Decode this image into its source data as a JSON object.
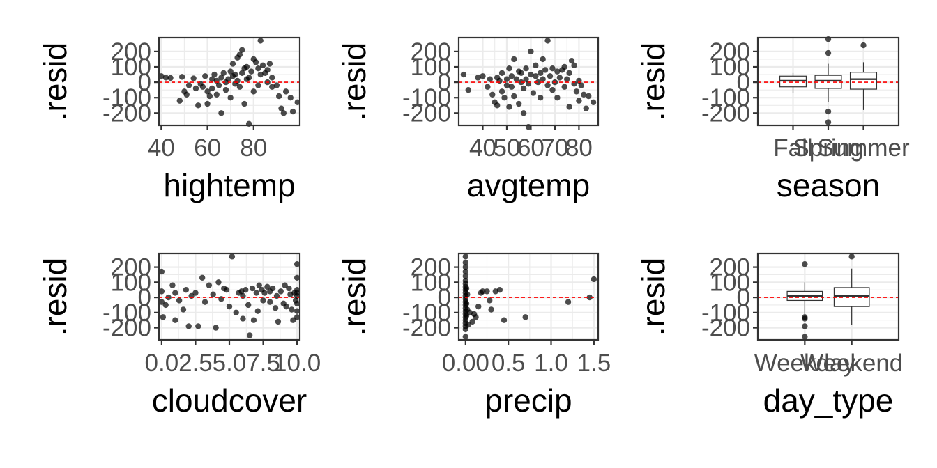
{
  "chart_data": [
    {
      "type": "scatter",
      "panel": "hightemp",
      "xlabel": "hightemp",
      "ylabel": ".resid",
      "xlim": [
        39,
        100
      ],
      "ylim": [
        -280,
        290
      ],
      "xticks": [
        40,
        60,
        80
      ],
      "xtick_labels": [
        "40",
        "60",
        "80"
      ],
      "yticks": [
        200,
        100,
        0,
        -100,
        -200
      ],
      "ytick_labels": [
        "200",
        "100",
        "0",
        "-100",
        "-200"
      ],
      "reference_line_y": 0,
      "points": [
        [
          40,
          40
        ],
        [
          42,
          30
        ],
        [
          44,
          28
        ],
        [
          48,
          -120
        ],
        [
          49,
          35
        ],
        [
          50,
          -60
        ],
        [
          51,
          -80
        ],
        [
          52,
          -20
        ],
        [
          54,
          25
        ],
        [
          55,
          -40
        ],
        [
          56,
          -150
        ],
        [
          57,
          -10
        ],
        [
          58,
          -30
        ],
        [
          59,
          40
        ],
        [
          60,
          -60
        ],
        [
          60,
          -140
        ],
        [
          61,
          -90
        ],
        [
          62,
          20
        ],
        [
          62,
          -40
        ],
        [
          63,
          50
        ],
        [
          64,
          10
        ],
        [
          64,
          -80
        ],
        [
          65,
          -20
        ],
        [
          66,
          30
        ],
        [
          66,
          -200
        ],
        [
          67,
          60
        ],
        [
          68,
          0
        ],
        [
          68,
          -50
        ],
        [
          69,
          20
        ],
        [
          70,
          70
        ],
        [
          70,
          -100
        ],
        [
          71,
          40
        ],
        [
          72,
          50
        ],
        [
          72,
          -10
        ],
        [
          73,
          10
        ],
        [
          73,
          160
        ],
        [
          74,
          -30
        ],
        [
          75,
          60
        ],
        [
          75,
          210
        ],
        [
          76,
          90
        ],
        [
          76,
          -140
        ],
        [
          77,
          100
        ],
        [
          77,
          20
        ],
        [
          78,
          30
        ],
        [
          78,
          -270
        ],
        [
          79,
          70
        ],
        [
          80,
          -60
        ],
        [
          80,
          150
        ],
        [
          81,
          130
        ],
        [
          82,
          90
        ],
        [
          82,
          -20
        ],
        [
          83,
          50
        ],
        [
          83,
          270
        ],
        [
          84,
          110
        ],
        [
          85,
          60
        ],
        [
          86,
          0
        ],
        [
          86,
          80
        ],
        [
          87,
          120
        ],
        [
          88,
          -30
        ],
        [
          88,
          30
        ],
        [
          90,
          -20
        ],
        [
          91,
          -90
        ],
        [
          92,
          -170
        ],
        [
          93,
          -200
        ],
        [
          94,
          -60
        ],
        [
          96,
          -100
        ],
        [
          97,
          -190
        ],
        [
          99,
          -130
        ],
        [
          71,
          120
        ],
        [
          74,
          180
        ]
      ]
    },
    {
      "type": "scatter",
      "panel": "avgtemp",
      "xlabel": "avgtemp",
      "ylabel": ".resid",
      "xlim": [
        30,
        88
      ],
      "ylim": [
        -280,
        290
      ],
      "xticks": [
        40,
        50,
        60,
        70,
        80
      ],
      "xtick_labels": [
        "40",
        "50",
        "60",
        "70",
        "80"
      ],
      "yticks": [
        200,
        100,
        0,
        -100,
        -200
      ],
      "ytick_labels": [
        "200",
        "100",
        "0",
        "-100",
        "-200"
      ],
      "reference_line_y": 0,
      "points": [
        [
          32,
          50
        ],
        [
          34,
          -50
        ],
        [
          38,
          30
        ],
        [
          40,
          40
        ],
        [
          42,
          -30
        ],
        [
          43,
          20
        ],
        [
          44,
          -80
        ],
        [
          45,
          -130
        ],
        [
          46,
          30
        ],
        [
          46,
          -150
        ],
        [
          47,
          10
        ],
        [
          48,
          -60
        ],
        [
          48,
          60
        ],
        [
          49,
          -100
        ],
        [
          50,
          -20
        ],
        [
          50,
          20
        ],
        [
          51,
          -160
        ],
        [
          51,
          90
        ],
        [
          52,
          40
        ],
        [
          52,
          -30
        ],
        [
          53,
          150
        ],
        [
          53,
          -90
        ],
        [
          54,
          20
        ],
        [
          55,
          70
        ],
        [
          55,
          -140
        ],
        [
          56,
          0
        ],
        [
          56,
          60
        ],
        [
          57,
          -40
        ],
        [
          57,
          -200
        ],
        [
          58,
          20
        ],
        [
          58,
          90
        ],
        [
          59,
          -10
        ],
        [
          59,
          -290
        ],
        [
          60,
          50
        ],
        [
          60,
          200
        ],
        [
          61,
          -70
        ],
        [
          62,
          40
        ],
        [
          62,
          110
        ],
        [
          63,
          0
        ],
        [
          64,
          60
        ],
        [
          64,
          -100
        ],
        [
          65,
          20
        ],
        [
          65,
          150
        ],
        [
          66,
          80
        ],
        [
          67,
          -20
        ],
        [
          67,
          270
        ],
        [
          68,
          40
        ],
        [
          69,
          90
        ],
        [
          69,
          -50
        ],
        [
          70,
          0
        ],
        [
          71,
          70
        ],
        [
          71,
          -100
        ],
        [
          72,
          30
        ],
        [
          73,
          80
        ],
        [
          74,
          -30
        ],
        [
          75,
          20
        ],
        [
          76,
          60
        ],
        [
          76,
          -160
        ],
        [
          77,
          140
        ],
        [
          78,
          110
        ],
        [
          78,
          -10
        ],
        [
          79,
          -60
        ],
        [
          80,
          -120
        ],
        [
          81,
          -20
        ],
        [
          82,
          -80
        ],
        [
          83,
          -170
        ],
        [
          84,
          -90
        ],
        [
          86,
          -130
        ],
        [
          80,
          10
        ],
        [
          74,
          100
        ]
      ]
    },
    {
      "type": "box",
      "panel": "season",
      "xlabel": "season",
      "ylabel": ".resid",
      "categories": [
        "Fall",
        "Spring",
        "Summer"
      ],
      "ylim": [
        -280,
        290
      ],
      "yticks": [
        200,
        100,
        0,
        -100,
        -200
      ],
      "ytick_labels": [
        "200",
        "100",
        "0",
        "-100",
        "-200"
      ],
      "reference_line_y": 0,
      "boxes": [
        {
          "q1": -30,
          "median": 10,
          "q3": 40,
          "lower": -70,
          "upper": 60,
          "outliers": []
        },
        {
          "q1": -40,
          "median": 10,
          "q3": 45,
          "lower": -130,
          "upper": 120,
          "outliers": [
            -190,
            -260,
            190,
            280
          ]
        },
        {
          "q1": -45,
          "median": 20,
          "q3": 65,
          "lower": -180,
          "upper": 130,
          "outliers": [
            240
          ]
        }
      ]
    },
    {
      "type": "scatter",
      "panel": "cloudcover",
      "xlabel": "cloudcover",
      "ylabel": ".resid",
      "xlim": [
        -0.2,
        10.2
      ],
      "ylim": [
        -280,
        290
      ],
      "xticks": [
        0,
        2.5,
        5,
        7.5,
        10
      ],
      "xtick_labels": [
        "0.0",
        "2.5",
        "5.0",
        "7.5",
        "10.0"
      ],
      "reference_line_y": 0,
      "yticks": [
        200,
        100,
        0,
        -100,
        -200
      ],
      "ytick_labels": [
        "200",
        "100",
        "0",
        "-100",
        "-200"
      ],
      "points": [
        [
          0,
          170
        ],
        [
          0,
          40
        ],
        [
          0,
          -30
        ],
        [
          0.1,
          -130
        ],
        [
          0.3,
          -50
        ],
        [
          0.5,
          0
        ],
        [
          0.8,
          80
        ],
        [
          1,
          30
        ],
        [
          1,
          -150
        ],
        [
          1.3,
          -20
        ],
        [
          1.6,
          -80
        ],
        [
          1.8,
          50
        ],
        [
          2,
          -190
        ],
        [
          2.2,
          10
        ],
        [
          2.5,
          30
        ],
        [
          2.7,
          -190
        ],
        [
          3,
          130
        ],
        [
          3.2,
          -30
        ],
        [
          3.5,
          80
        ],
        [
          3.8,
          20
        ],
        [
          4,
          -200
        ],
        [
          4.2,
          100
        ],
        [
          4.4,
          -10
        ],
        [
          4.6,
          60
        ],
        [
          4.8,
          50
        ],
        [
          5,
          -60
        ],
        [
          5.2,
          270
        ],
        [
          5.5,
          -100
        ],
        [
          5.7,
          30
        ],
        [
          5.9,
          40
        ],
        [
          6,
          10
        ],
        [
          6,
          -140
        ],
        [
          6.2,
          50
        ],
        [
          6.4,
          -50
        ],
        [
          6.5,
          -250
        ],
        [
          6.7,
          60
        ],
        [
          6.8,
          -150
        ],
        [
          7,
          30
        ],
        [
          7.1,
          -90
        ],
        [
          7.2,
          80
        ],
        [
          7.4,
          50
        ],
        [
          7.5,
          -20
        ],
        [
          7.6,
          30
        ],
        [
          7.8,
          70
        ],
        [
          8,
          -30
        ],
        [
          8,
          40
        ],
        [
          8.2,
          60
        ],
        [
          8.4,
          -70
        ],
        [
          8.5,
          10
        ],
        [
          8.6,
          -160
        ],
        [
          8.8,
          40
        ],
        [
          9,
          -40
        ],
        [
          9.1,
          80
        ],
        [
          9.2,
          -60
        ],
        [
          9.4,
          60
        ],
        [
          9.5,
          20
        ],
        [
          9.6,
          -80
        ],
        [
          9.7,
          -150
        ],
        [
          9.8,
          30
        ],
        [
          9.9,
          -20
        ],
        [
          10,
          50
        ],
        [
          10,
          -130
        ],
        [
          10,
          10
        ],
        [
          10,
          -40
        ],
        [
          10,
          220
        ],
        [
          10,
          130
        ],
        [
          10,
          -90
        ],
        [
          10,
          30
        ]
      ]
    },
    {
      "type": "scatter",
      "panel": "precip",
      "xlabel": "precip",
      "ylabel": ".resid",
      "xlim": [
        -0.08,
        1.55
      ],
      "ylim": [
        -280,
        290
      ],
      "xticks": [
        0,
        0.5,
        1,
        1.5
      ],
      "xtick_labels": [
        "0.00",
        "0.5",
        "1.0",
        "1.5"
      ],
      "yticks": [
        200,
        100,
        0,
        -100,
        -200
      ],
      "ytick_labels": [
        "200",
        "100",
        "0",
        "-100",
        "-200"
      ],
      "reference_line_y": 0,
      "points": [
        [
          0,
          270
        ],
        [
          0,
          230
        ],
        [
          0,
          200
        ],
        [
          0,
          170
        ],
        [
          0,
          140
        ],
        [
          0,
          110
        ],
        [
          0,
          90
        ],
        [
          0,
          70
        ],
        [
          0,
          50
        ],
        [
          0,
          30
        ],
        [
          0,
          10
        ],
        [
          0,
          -10
        ],
        [
          0,
          -30
        ],
        [
          0,
          -50
        ],
        [
          0,
          -70
        ],
        [
          0,
          -90
        ],
        [
          0,
          -110
        ],
        [
          0,
          -130
        ],
        [
          0,
          -150
        ],
        [
          0,
          -170
        ],
        [
          0,
          -190
        ],
        [
          0,
          -210
        ],
        [
          0,
          -260
        ],
        [
          0.01,
          60
        ],
        [
          0.01,
          -40
        ],
        [
          0.01,
          -120
        ],
        [
          0.02,
          20
        ],
        [
          0.02,
          -80
        ],
        [
          0.03,
          -180
        ],
        [
          0.05,
          -100
        ],
        [
          0.08,
          -160
        ],
        [
          0.1,
          -110
        ],
        [
          0.12,
          -130
        ],
        [
          0.15,
          -60
        ],
        [
          0.18,
          30
        ],
        [
          0.2,
          40
        ],
        [
          0.25,
          40
        ],
        [
          0.28,
          -20
        ],
        [
          0.3,
          -80
        ],
        [
          0.35,
          40
        ],
        [
          0.4,
          50
        ],
        [
          0.45,
          -150
        ],
        [
          0.7,
          -130
        ],
        [
          1.2,
          -30
        ],
        [
          1.45,
          0
        ],
        [
          1.5,
          120
        ]
      ]
    },
    {
      "type": "box",
      "panel": "day_type",
      "xlabel": "day_type",
      "ylabel": ".resid",
      "categories": [
        "Weekday",
        "Weekend"
      ],
      "ylim": [
        -280,
        290
      ],
      "yticks": [
        200,
        100,
        0,
        -100,
        -200
      ],
      "ytick_labels": [
        "200",
        "100",
        "0",
        "-100",
        "-200"
      ],
      "reference_line_y": 0,
      "boxes": [
        {
          "q1": -20,
          "median": 10,
          "q3": 40,
          "lower": -110,
          "upper": 100,
          "outliers": [
            -140,
            -190,
            -130,
            -260,
            220
          ]
        },
        {
          "q1": -60,
          "median": 10,
          "q3": 65,
          "lower": -180,
          "upper": 190,
          "outliers": [
            270
          ]
        }
      ]
    }
  ]
}
